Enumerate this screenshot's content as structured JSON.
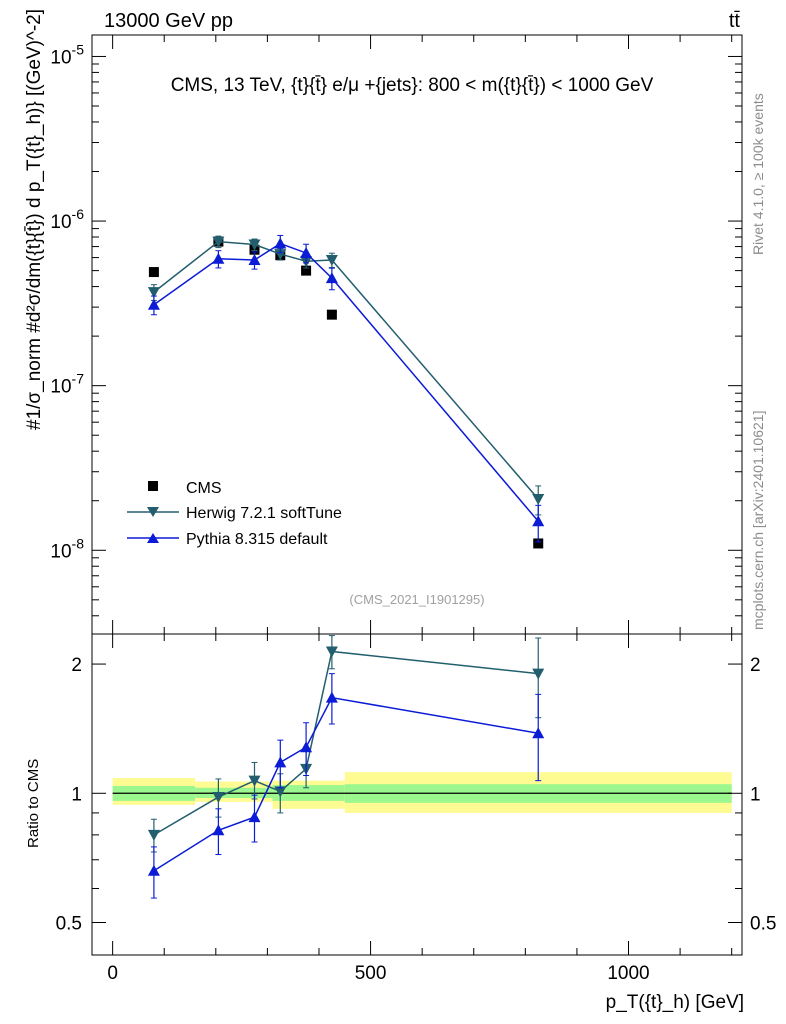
{
  "header": {
    "energy_label": "13000 GeV pp",
    "process_label": "tt̄",
    "side_rivet": "Rivet 4.1.0, ≥ 100k events",
    "side_mcplots": "mcplots.cern.ch [arXiv:2401.10621]",
    "watermark": "(CMS_2021_I1901295)"
  },
  "chart_data": [
    {
      "type": "line",
      "panel": "main",
      "title": "CMS, 13 TeV, {t}{t̄} e/μ +{jets}: 800 < m({t}{t̄}) < 1000 GeV",
      "xlabel": "p_T({t}_h) [GeV]",
      "ylabel": "#1/σ_norm #d²σ/dm({t}{t̄}) d p_T({t}_h)} [(GeV)^-2]",
      "yscale": "log",
      "xlim": [
        -40,
        1220
      ],
      "ylim": [
        3.1e-09,
        1.35e-05
      ],
      "ytick_labels": [
        "10^-8",
        "10^-7",
        "10^-6",
        "10^-5"
      ],
      "legend": [
        "CMS",
        "Herwig 7.2.1 softTune",
        "Pythia 8.315 default"
      ],
      "legend_position": "bottom-left",
      "series": [
        {
          "name": "CMS",
          "color": "#000000",
          "marker": "square",
          "x": [
            80,
            205,
            275,
            325,
            375,
            425,
            825
          ],
          "y": [
            4.9e-07,
            7.5e-07,
            6.7e-07,
            6.2e-07,
            5e-07,
            2.7e-07,
            1.1e-08
          ]
        },
        {
          "name": "Herwig 7.2.1 softTune",
          "color": "#225e6e",
          "marker": "triangle-down",
          "x": [
            80,
            205,
            275,
            325,
            375,
            425,
            825
          ],
          "y": [
            3.7e-07,
            7.5e-07,
            7.2e-07,
            6.3e-07,
            5.7e-07,
            5.8e-07,
            2.05e-08
          ],
          "err": [
            0.11,
            0.08,
            0.08,
            0.08,
            0.09,
            0.1,
            0.2
          ]
        },
        {
          "name": "Pythia 8.315 default",
          "color": "#0b1bd6",
          "marker": "triangle-up",
          "x": [
            80,
            205,
            275,
            325,
            375,
            425,
            825
          ],
          "y": [
            3.1e-07,
            5.9e-07,
            5.8e-07,
            7.3e-07,
            6.4e-07,
            4.5e-07,
            1.5e-08
          ],
          "err": [
            0.13,
            0.12,
            0.12,
            0.12,
            0.13,
            0.15,
            0.25
          ]
        }
      ]
    },
    {
      "type": "line",
      "panel": "ratio",
      "ylabel": "Ratio to CMS",
      "xlabel": "p_T({t}_h) [GeV]",
      "yscale": "log",
      "xlim": [
        -40,
        1220
      ],
      "ylim": [
        0.42,
        2.35
      ],
      "x_ticks": [
        0,
        500,
        1000
      ],
      "y_ticks": [
        0.5,
        1,
        2
      ],
      "band_edges": [
        0,
        160,
        310,
        450,
        1200
      ],
      "band_inner": [
        [
          0.96,
          1.04
        ],
        [
          0.975,
          1.03
        ],
        [
          0.96,
          1.045
        ],
        [
          0.95,
          1.05
        ]
      ],
      "band_outer": [
        [
          0.94,
          1.085
        ],
        [
          0.955,
          1.065
        ],
        [
          0.92,
          1.07
        ],
        [
          0.9,
          1.12
        ]
      ],
      "series": [
        {
          "name": "Herwig 7.2.1 softTune",
          "color": "#225e6e",
          "marker": "triangle-down",
          "x": [
            80,
            205,
            275,
            325,
            375,
            425,
            825
          ],
          "y": [
            0.8,
            0.98,
            1.07,
            1.01,
            1.14,
            2.14,
            1.9
          ],
          "lo": [
            0.73,
            0.88,
            0.97,
            0.9,
            1.03,
            1.95,
            1.5
          ],
          "hi": [
            0.87,
            1.08,
            1.18,
            1.11,
            1.26,
            2.33,
            2.3
          ]
        },
        {
          "name": "Pythia 8.315 default",
          "color": "#0b1bd6",
          "marker": "triangle-up",
          "x": [
            80,
            205,
            275,
            325,
            375,
            425,
            825
          ],
          "y": [
            0.66,
            0.82,
            0.88,
            1.18,
            1.28,
            1.67,
            1.38
          ],
          "lo": [
            0.57,
            0.72,
            0.77,
            1.03,
            1.1,
            1.45,
            1.07
          ],
          "hi": [
            0.75,
            0.92,
            0.99,
            1.33,
            1.46,
            1.9,
            1.7
          ]
        }
      ]
    }
  ]
}
